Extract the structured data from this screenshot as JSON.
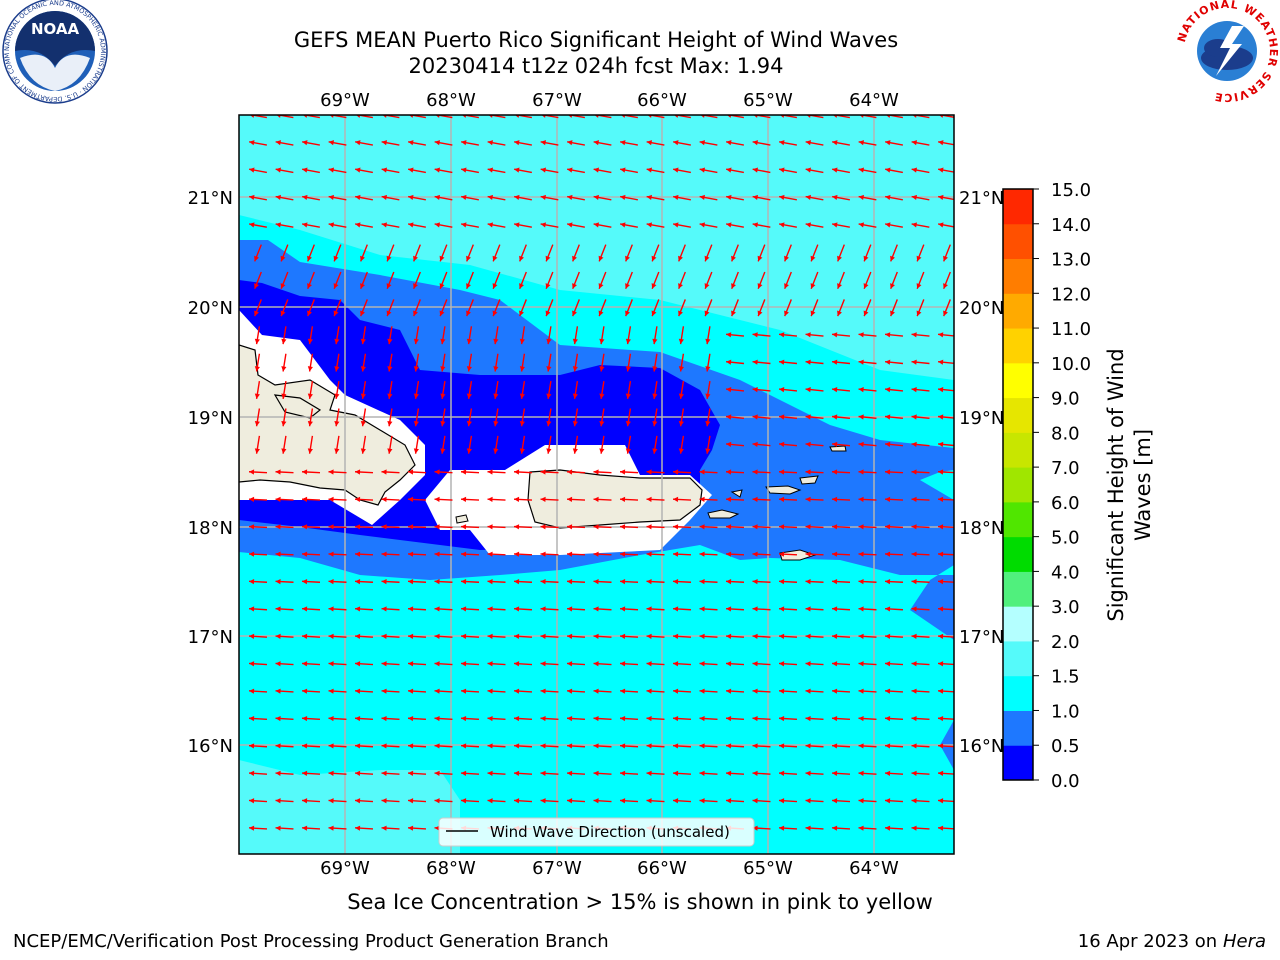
{
  "title": {
    "line1": "GEFS MEAN Puerto Rico Significant Height of Wind Waves",
    "line2": "20230414 t12z 024h fcst   Max: 1.94"
  },
  "map": {
    "lon_ticks": [
      "69°W",
      "68°W",
      "67°W",
      "66°W",
      "65°W",
      "64°W"
    ],
    "lat_ticks": [
      "21°N",
      "20°N",
      "19°N",
      "18°N",
      "17°N",
      "16°N"
    ],
    "legend_label": "Wind Wave Direction (unscaled)",
    "arrow_color": "#ff0000",
    "land_color": "#efedde"
  },
  "colorbar": {
    "label_line1": "Significant Height of Wind",
    "label_line2": "Waves [m]",
    "ticks": [
      "0.0",
      "0.5",
      "1.0",
      "1.5",
      "2.0",
      "3.0",
      "4.0",
      "5.0",
      "6.0",
      "7.0",
      "8.0",
      "9.0",
      "10.0",
      "11.0",
      "12.0",
      "13.0",
      "14.0",
      "15.0"
    ],
    "colors": [
      "#0000ff",
      "#1e78ff",
      "#00ffff",
      "#55fafa",
      "#b4ffff",
      "#50f07d",
      "#00dc00",
      "#50e600",
      "#a0e600",
      "#c8e600",
      "#e6e600",
      "#ffff00",
      "#ffd200",
      "#ffaa00",
      "#ff7d00",
      "#ff5000",
      "#ff2800",
      "#ff0000"
    ]
  },
  "footer": {
    "left": "NCEP/EMC/Verification Post Processing Product Generation Branch",
    "right_date": "16 Apr 2023 on ",
    "right_host": "Hera"
  },
  "note": "Sea Ice Concentration > 15% is shown in pink to yellow",
  "logos": {
    "noaa_text": "NOAA",
    "noaa_ring": "NATIONAL OCEANIC AND ATMOSPHERIC ADMINISTRATION · U.S. DEPARTMENT OF COMMERCE",
    "nws_ring": "NATIONAL WEATHER SERVICE"
  }
}
